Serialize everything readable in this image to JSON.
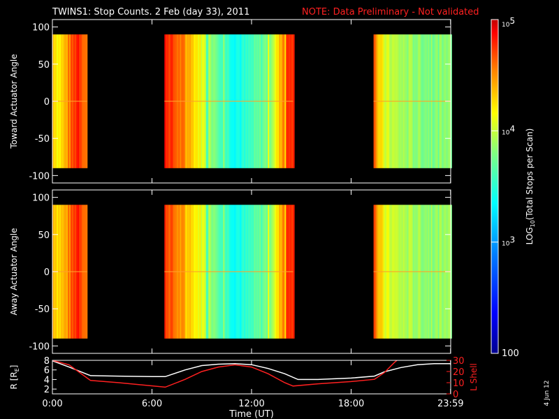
{
  "title": {
    "main": "TWINS1: Stop Counts.  2 Feb (day  33), 2011",
    "note": "NOTE: Data Preliminary - Not validated"
  },
  "colors": {
    "background": "#000000",
    "axis": "#ffffff",
    "note": "#ff2020",
    "r_curve": "#ffffff",
    "lshell_curve": "#ff2020",
    "colormap": [
      "#00008f",
      "#0000ff",
      "#0080ff",
      "#00ffff",
      "#80ff80",
      "#ffff00",
      "#ff8000",
      "#ff0000",
      "#c00000"
    ]
  },
  "colorbar": {
    "label": "LOG10(Total Stops per Scan)",
    "label_parts": [
      "LOG",
      "10",
      "(Total Stops per Scan)"
    ],
    "scale": "log",
    "range": [
      100,
      100000
    ],
    "ticks": [
      {
        "value": 100,
        "label": "100"
      },
      {
        "value": 1000,
        "label": "10",
        "exp": "3"
      },
      {
        "value": 10000,
        "label": "10",
        "exp": "4"
      },
      {
        "value": 100000,
        "label": "10",
        "exp": "5"
      }
    ]
  },
  "footer": {
    "xlabel": "Time (UT)",
    "xticks": [
      "0:00",
      "6:00",
      "12:00",
      "18:00",
      "23:59"
    ],
    "date_stamp": "4 Jun 12"
  },
  "chart_data": [
    {
      "type": "heatmap",
      "panel": "toward",
      "ylabel": "Toward Actuator Angle",
      "xlabel": "",
      "xlim": [
        0,
        24
      ],
      "ylim": [
        -110,
        110
      ],
      "yticks": [
        100,
        50,
        0,
        -50,
        -100
      ],
      "data_y_range": [
        -90,
        90
      ],
      "segments": [
        {
          "start": 0.0,
          "end": 2.1,
          "profile": [
            [
              0.0,
              4.1
            ],
            [
              0.3,
              3.9
            ],
            [
              0.6,
              4.0
            ],
            [
              0.9,
              4.2
            ],
            [
              1.2,
              4.4
            ],
            [
              1.5,
              4.6
            ],
            [
              1.8,
              4.4
            ],
            [
              2.1,
              4.2
            ]
          ]
        },
        {
          "start": 6.75,
          "end": 14.5,
          "profile": [
            [
              6.75,
              4.6
            ],
            [
              7.0,
              4.5
            ],
            [
              7.3,
              4.4
            ],
            [
              7.6,
              4.3
            ],
            [
              8.0,
              4.2
            ],
            [
              8.5,
              4.0
            ],
            [
              9.0,
              3.8
            ],
            [
              9.5,
              3.6
            ],
            [
              10.0,
              3.45
            ],
            [
              10.5,
              3.3
            ],
            [
              11.0,
              3.2
            ],
            [
              11.5,
              3.2
            ],
            [
              12.0,
              3.3
            ],
            [
              12.5,
              3.4
            ],
            [
              13.0,
              3.5
            ],
            [
              13.5,
              3.9
            ],
            [
              14.0,
              4.4
            ],
            [
              14.3,
              4.6
            ],
            [
              14.5,
              4.5
            ]
          ]
        },
        {
          "start": 19.35,
          "end": 23.99,
          "profile": [
            [
              19.35,
              4.5
            ],
            [
              19.6,
              4.0
            ],
            [
              20.0,
              3.75
            ],
            [
              21.0,
              3.6
            ],
            [
              22.0,
              3.55
            ],
            [
              23.0,
              3.5
            ],
            [
              23.99,
              3.55
            ]
          ]
        }
      ],
      "z_units": "log10 counts"
    },
    {
      "type": "heatmap",
      "panel": "away",
      "ylabel": "Away Actuator Angle",
      "xlabel": "",
      "xlim": [
        0,
        24
      ],
      "ylim": [
        -110,
        110
      ],
      "yticks": [
        100,
        50,
        0,
        -50,
        -100
      ],
      "data_y_range": [
        -90,
        90
      ],
      "segments": [
        {
          "start": 0.0,
          "end": 2.1,
          "profile": [
            [
              0.0,
              4.15
            ],
            [
              0.3,
              4.0
            ],
            [
              0.6,
              4.05
            ],
            [
              0.9,
              4.2
            ],
            [
              1.2,
              4.4
            ],
            [
              1.5,
              4.6
            ],
            [
              1.8,
              4.4
            ],
            [
              2.1,
              4.2
            ]
          ]
        },
        {
          "start": 6.75,
          "end": 14.5,
          "profile": [
            [
              6.75,
              4.5
            ],
            [
              7.0,
              4.4
            ],
            [
              7.3,
              4.3
            ],
            [
              7.6,
              4.2
            ],
            [
              8.0,
              4.1
            ],
            [
              8.5,
              3.95
            ],
            [
              9.0,
              3.8
            ],
            [
              9.5,
              3.6
            ],
            [
              10.0,
              3.45
            ],
            [
              10.5,
              3.3
            ],
            [
              11.0,
              3.2
            ],
            [
              11.5,
              3.2
            ],
            [
              12.0,
              3.3
            ],
            [
              12.5,
              3.4
            ],
            [
              13.0,
              3.5
            ],
            [
              13.5,
              3.9
            ],
            [
              14.0,
              4.4
            ],
            [
              14.3,
              4.6
            ],
            [
              14.5,
              4.5
            ]
          ]
        },
        {
          "start": 19.35,
          "end": 23.99,
          "profile": [
            [
              19.35,
              4.55
            ],
            [
              19.6,
              4.05
            ],
            [
              20.0,
              3.8
            ],
            [
              21.0,
              3.65
            ],
            [
              22.0,
              3.6
            ],
            [
              23.0,
              3.55
            ],
            [
              23.99,
              3.6
            ]
          ]
        }
      ],
      "z_units": "log10 counts"
    },
    {
      "type": "line",
      "panel": "orbit",
      "xlabel": "Time (UT)",
      "xlim": [
        0,
        24
      ],
      "y_left": {
        "label": "R [RE]",
        "label_parts": [
          "R [R",
          "E",
          "]"
        ],
        "range": [
          1,
          8
        ],
        "ticks": [
          8,
          6,
          4,
          2
        ]
      },
      "y_right": {
        "label": "L Shell",
        "range": [
          0,
          30
        ],
        "ticks": [
          30,
          20,
          10,
          0
        ]
      },
      "series": [
        {
          "name": "R [RE]",
          "axis": "left",
          "color": "#ffffff",
          "x": [
            0.0,
            1.0,
            2.3,
            4.0,
            6.0,
            6.8,
            8.0,
            9.0,
            10.0,
            11.0,
            12.0,
            13.0,
            14.0,
            14.8,
            16.0,
            18.0,
            19.4,
            20.0,
            21.0,
            22.0,
            23.0,
            23.99
          ],
          "y": [
            7.9,
            6.6,
            4.8,
            4.7,
            4.6,
            4.6,
            6.0,
            6.9,
            7.2,
            7.3,
            7.1,
            6.3,
            5.2,
            4.0,
            4.0,
            4.3,
            4.7,
            5.6,
            6.5,
            7.1,
            7.3,
            7.3
          ]
        },
        {
          "name": "L Shell",
          "axis": "right",
          "color": "#ff2020",
          "x": [
            0.0,
            1.0,
            2.3,
            4.0,
            6.8,
            8.0,
            9.0,
            10.0,
            11.0,
            12.0,
            13.0,
            14.0,
            14.5,
            16.0,
            18.0,
            19.4,
            20.0,
            20.6,
            21.0
          ],
          "y": [
            30,
            26,
            12,
            10,
            6,
            13,
            20,
            24,
            26,
            24,
            18,
            10,
            7,
            9,
            11,
            13,
            19,
            28,
            33
          ]
        }
      ]
    }
  ]
}
